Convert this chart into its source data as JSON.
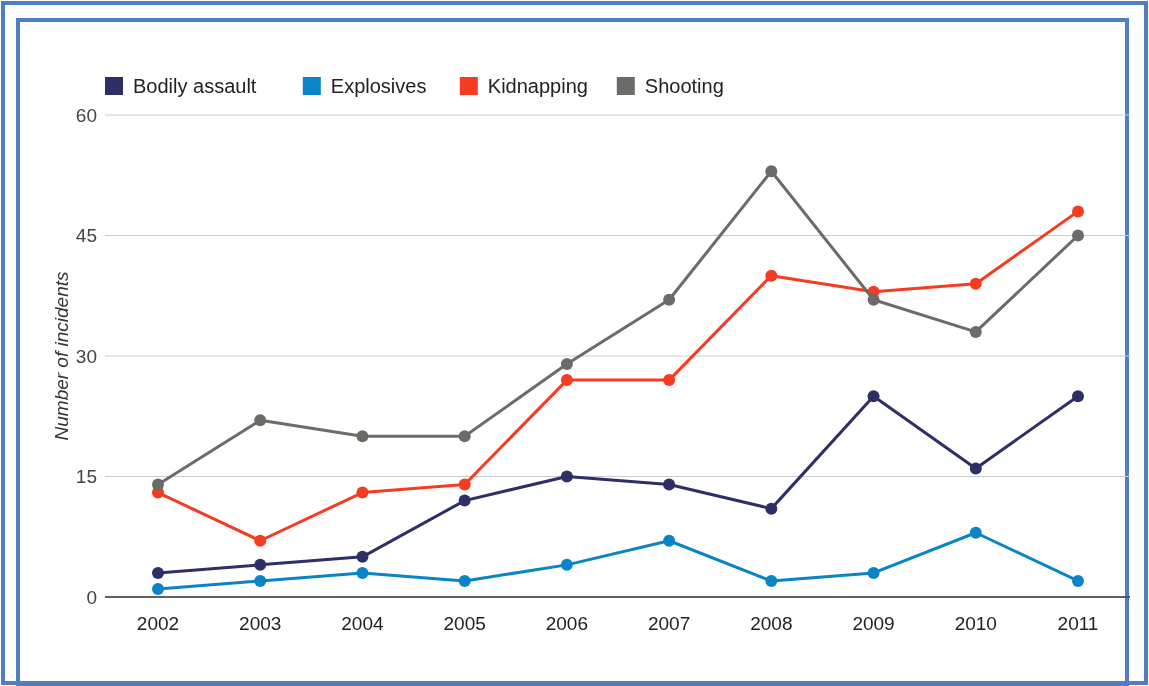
{
  "chart_data": {
    "type": "line",
    "ylabel": "Number of incidents",
    "categories": [
      "2002",
      "2003",
      "2004",
      "2005",
      "2006",
      "2007",
      "2008",
      "2009",
      "2010",
      "2011"
    ],
    "series": [
      {
        "name": "Bodily assault",
        "color": "#2e2f66",
        "values": [
          3,
          4,
          5,
          12,
          15,
          14,
          11,
          25,
          16,
          25
        ]
      },
      {
        "name": "Explosives",
        "color": "#0a84c6",
        "values": [
          1,
          2,
          3,
          2,
          4,
          7,
          2,
          3,
          8,
          2
        ]
      },
      {
        "name": "Kidnapping",
        "color": "#f53b22",
        "values": [
          13,
          7,
          13,
          14,
          27,
          27,
          40,
          38,
          39,
          48
        ]
      },
      {
        "name": "Shooting",
        "color": "#6b6b67",
        "values": [
          14,
          22,
          20,
          20,
          29,
          37,
          53,
          37,
          33,
          45
        ]
      }
    ],
    "ylim": [
      0,
      60
    ],
    "yticks": [
      0,
      15,
      30,
      45,
      60
    ],
    "grid": "y",
    "legend": "top left",
    "marker": "circle",
    "line_style": "solid"
  }
}
